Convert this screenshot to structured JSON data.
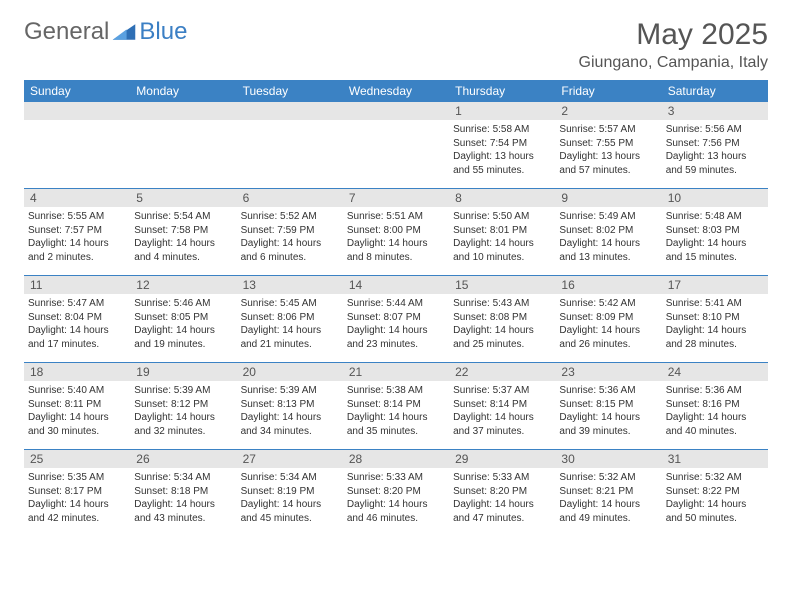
{
  "brand": {
    "part1": "General",
    "part2": "Blue"
  },
  "title": "May 2025",
  "location": "Giungano, Campania, Italy",
  "colors": {
    "headerBar": "#3b82c4",
    "dayNumBg": "#e6e6e6",
    "text": "#333333"
  },
  "dow": [
    "Sunday",
    "Monday",
    "Tuesday",
    "Wednesday",
    "Thursday",
    "Friday",
    "Saturday"
  ],
  "weeks": [
    [
      {
        "n": "",
        "sr": "",
        "ss": "",
        "dl": ""
      },
      {
        "n": "",
        "sr": "",
        "ss": "",
        "dl": ""
      },
      {
        "n": "",
        "sr": "",
        "ss": "",
        "dl": ""
      },
      {
        "n": "",
        "sr": "",
        "ss": "",
        "dl": ""
      },
      {
        "n": "1",
        "sr": "Sunrise: 5:58 AM",
        "ss": "Sunset: 7:54 PM",
        "dl": "Daylight: 13 hours and 55 minutes."
      },
      {
        "n": "2",
        "sr": "Sunrise: 5:57 AM",
        "ss": "Sunset: 7:55 PM",
        "dl": "Daylight: 13 hours and 57 minutes."
      },
      {
        "n": "3",
        "sr": "Sunrise: 5:56 AM",
        "ss": "Sunset: 7:56 PM",
        "dl": "Daylight: 13 hours and 59 minutes."
      }
    ],
    [
      {
        "n": "4",
        "sr": "Sunrise: 5:55 AM",
        "ss": "Sunset: 7:57 PM",
        "dl": "Daylight: 14 hours and 2 minutes."
      },
      {
        "n": "5",
        "sr": "Sunrise: 5:54 AM",
        "ss": "Sunset: 7:58 PM",
        "dl": "Daylight: 14 hours and 4 minutes."
      },
      {
        "n": "6",
        "sr": "Sunrise: 5:52 AM",
        "ss": "Sunset: 7:59 PM",
        "dl": "Daylight: 14 hours and 6 minutes."
      },
      {
        "n": "7",
        "sr": "Sunrise: 5:51 AM",
        "ss": "Sunset: 8:00 PM",
        "dl": "Daylight: 14 hours and 8 minutes."
      },
      {
        "n": "8",
        "sr": "Sunrise: 5:50 AM",
        "ss": "Sunset: 8:01 PM",
        "dl": "Daylight: 14 hours and 10 minutes."
      },
      {
        "n": "9",
        "sr": "Sunrise: 5:49 AM",
        "ss": "Sunset: 8:02 PM",
        "dl": "Daylight: 14 hours and 13 minutes."
      },
      {
        "n": "10",
        "sr": "Sunrise: 5:48 AM",
        "ss": "Sunset: 8:03 PM",
        "dl": "Daylight: 14 hours and 15 minutes."
      }
    ],
    [
      {
        "n": "11",
        "sr": "Sunrise: 5:47 AM",
        "ss": "Sunset: 8:04 PM",
        "dl": "Daylight: 14 hours and 17 minutes."
      },
      {
        "n": "12",
        "sr": "Sunrise: 5:46 AM",
        "ss": "Sunset: 8:05 PM",
        "dl": "Daylight: 14 hours and 19 minutes."
      },
      {
        "n": "13",
        "sr": "Sunrise: 5:45 AM",
        "ss": "Sunset: 8:06 PM",
        "dl": "Daylight: 14 hours and 21 minutes."
      },
      {
        "n": "14",
        "sr": "Sunrise: 5:44 AM",
        "ss": "Sunset: 8:07 PM",
        "dl": "Daylight: 14 hours and 23 minutes."
      },
      {
        "n": "15",
        "sr": "Sunrise: 5:43 AM",
        "ss": "Sunset: 8:08 PM",
        "dl": "Daylight: 14 hours and 25 minutes."
      },
      {
        "n": "16",
        "sr": "Sunrise: 5:42 AM",
        "ss": "Sunset: 8:09 PM",
        "dl": "Daylight: 14 hours and 26 minutes."
      },
      {
        "n": "17",
        "sr": "Sunrise: 5:41 AM",
        "ss": "Sunset: 8:10 PM",
        "dl": "Daylight: 14 hours and 28 minutes."
      }
    ],
    [
      {
        "n": "18",
        "sr": "Sunrise: 5:40 AM",
        "ss": "Sunset: 8:11 PM",
        "dl": "Daylight: 14 hours and 30 minutes."
      },
      {
        "n": "19",
        "sr": "Sunrise: 5:39 AM",
        "ss": "Sunset: 8:12 PM",
        "dl": "Daylight: 14 hours and 32 minutes."
      },
      {
        "n": "20",
        "sr": "Sunrise: 5:39 AM",
        "ss": "Sunset: 8:13 PM",
        "dl": "Daylight: 14 hours and 34 minutes."
      },
      {
        "n": "21",
        "sr": "Sunrise: 5:38 AM",
        "ss": "Sunset: 8:14 PM",
        "dl": "Daylight: 14 hours and 35 minutes."
      },
      {
        "n": "22",
        "sr": "Sunrise: 5:37 AM",
        "ss": "Sunset: 8:14 PM",
        "dl": "Daylight: 14 hours and 37 minutes."
      },
      {
        "n": "23",
        "sr": "Sunrise: 5:36 AM",
        "ss": "Sunset: 8:15 PM",
        "dl": "Daylight: 14 hours and 39 minutes."
      },
      {
        "n": "24",
        "sr": "Sunrise: 5:36 AM",
        "ss": "Sunset: 8:16 PM",
        "dl": "Daylight: 14 hours and 40 minutes."
      }
    ],
    [
      {
        "n": "25",
        "sr": "Sunrise: 5:35 AM",
        "ss": "Sunset: 8:17 PM",
        "dl": "Daylight: 14 hours and 42 minutes."
      },
      {
        "n": "26",
        "sr": "Sunrise: 5:34 AM",
        "ss": "Sunset: 8:18 PM",
        "dl": "Daylight: 14 hours and 43 minutes."
      },
      {
        "n": "27",
        "sr": "Sunrise: 5:34 AM",
        "ss": "Sunset: 8:19 PM",
        "dl": "Daylight: 14 hours and 45 minutes."
      },
      {
        "n": "28",
        "sr": "Sunrise: 5:33 AM",
        "ss": "Sunset: 8:20 PM",
        "dl": "Daylight: 14 hours and 46 minutes."
      },
      {
        "n": "29",
        "sr": "Sunrise: 5:33 AM",
        "ss": "Sunset: 8:20 PM",
        "dl": "Daylight: 14 hours and 47 minutes."
      },
      {
        "n": "30",
        "sr": "Sunrise: 5:32 AM",
        "ss": "Sunset: 8:21 PM",
        "dl": "Daylight: 14 hours and 49 minutes."
      },
      {
        "n": "31",
        "sr": "Sunrise: 5:32 AM",
        "ss": "Sunset: 8:22 PM",
        "dl": "Daylight: 14 hours and 50 minutes."
      }
    ]
  ]
}
